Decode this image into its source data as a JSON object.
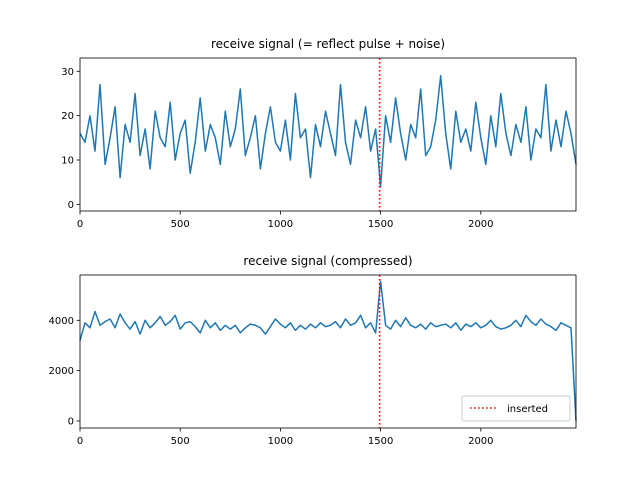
{
  "chart_data": [
    {
      "type": "line",
      "title": "receive signal (= reflect pulse + noise)",
      "xlabel": "",
      "ylabel": "",
      "xlim": [
        0,
        2475
      ],
      "ylim": [
        -1.5,
        33
      ],
      "x_ticks": [
        0,
        500,
        1000,
        1500,
        2000
      ],
      "y_ticks": [
        0,
        10,
        20,
        30
      ],
      "grid": false,
      "series": [
        {
          "color": "#1f77b4",
          "sample_step": 25,
          "x_start": 0,
          "values": [
            16,
            14,
            20,
            12,
            27,
            9,
            15,
            22,
            6,
            18,
            14,
            25,
            11,
            17,
            8,
            21,
            15,
            13,
            23,
            10,
            16,
            19,
            7,
            14,
            24,
            12,
            18,
            15,
            9,
            21,
            13,
            17,
            26,
            11,
            15,
            20,
            8,
            16,
            22,
            14,
            12,
            19,
            10,
            25,
            15,
            17,
            6,
            18,
            13,
            21,
            16,
            11,
            27,
            14,
            9,
            19,
            15,
            22,
            12,
            17,
            4,
            20,
            14,
            24,
            16,
            10,
            18,
            15,
            26,
            11,
            13,
            19,
            29,
            16,
            8,
            21,
            14,
            17,
            12,
            23,
            15,
            9,
            20,
            13,
            25,
            16,
            11,
            18,
            14,
            22,
            10,
            17,
            15,
            27,
            12,
            19,
            13,
            21,
            16,
            9
          ]
        }
      ],
      "markers": [
        {
          "x": 1495,
          "color": "#ff0000",
          "style": "dotted"
        }
      ]
    },
    {
      "type": "line",
      "title": "receive signal (compressed)",
      "xlabel": "",
      "ylabel": "",
      "xlim": [
        0,
        2475
      ],
      "ylim": [
        -280,
        5800
      ],
      "x_ticks": [
        0,
        500,
        1000,
        1500,
        2000
      ],
      "y_ticks": [
        0,
        2000,
        4000
      ],
      "grid": false,
      "series": [
        {
          "color": "#1f77b4",
          "sample_step": 25,
          "x_start": 0,
          "values": [
            3200,
            3900,
            3700,
            4350,
            3800,
            3950,
            4050,
            3700,
            4250,
            3900,
            3650,
            3950,
            3450,
            4000,
            3700,
            3900,
            4150,
            3800,
            3950,
            4200,
            3650,
            3900,
            3950,
            3750,
            3500,
            4000,
            3700,
            3900,
            3600,
            3800,
            3650,
            3800,
            3500,
            3700,
            3850,
            3800,
            3700,
            3450,
            3750,
            4050,
            3850,
            3700,
            3900,
            3600,
            3800,
            3650,
            3850,
            3700,
            3900,
            3750,
            3800,
            3950,
            3700,
            4050,
            3800,
            3900,
            4200,
            3700,
            3900,
            3500,
            5550,
            3800,
            3650,
            4000,
            3750,
            4100,
            3800,
            3700,
            3850,
            3650,
            3900,
            3750,
            3800,
            3850,
            3700,
            3900,
            3600,
            3850,
            3750,
            3900,
            3700,
            3800,
            4000,
            3750,
            3650,
            3700,
            3800,
            4000,
            3750,
            4200,
            3950,
            3800,
            4050,
            3850,
            3750,
            3600,
            3900,
            3800,
            3700,
            0
          ]
        }
      ],
      "markers": [
        {
          "x": 1495,
          "color": "#ff0000",
          "style": "dotted"
        }
      ],
      "legend": {
        "position": "lower-right",
        "entries": [
          "inserted"
        ]
      }
    }
  ]
}
